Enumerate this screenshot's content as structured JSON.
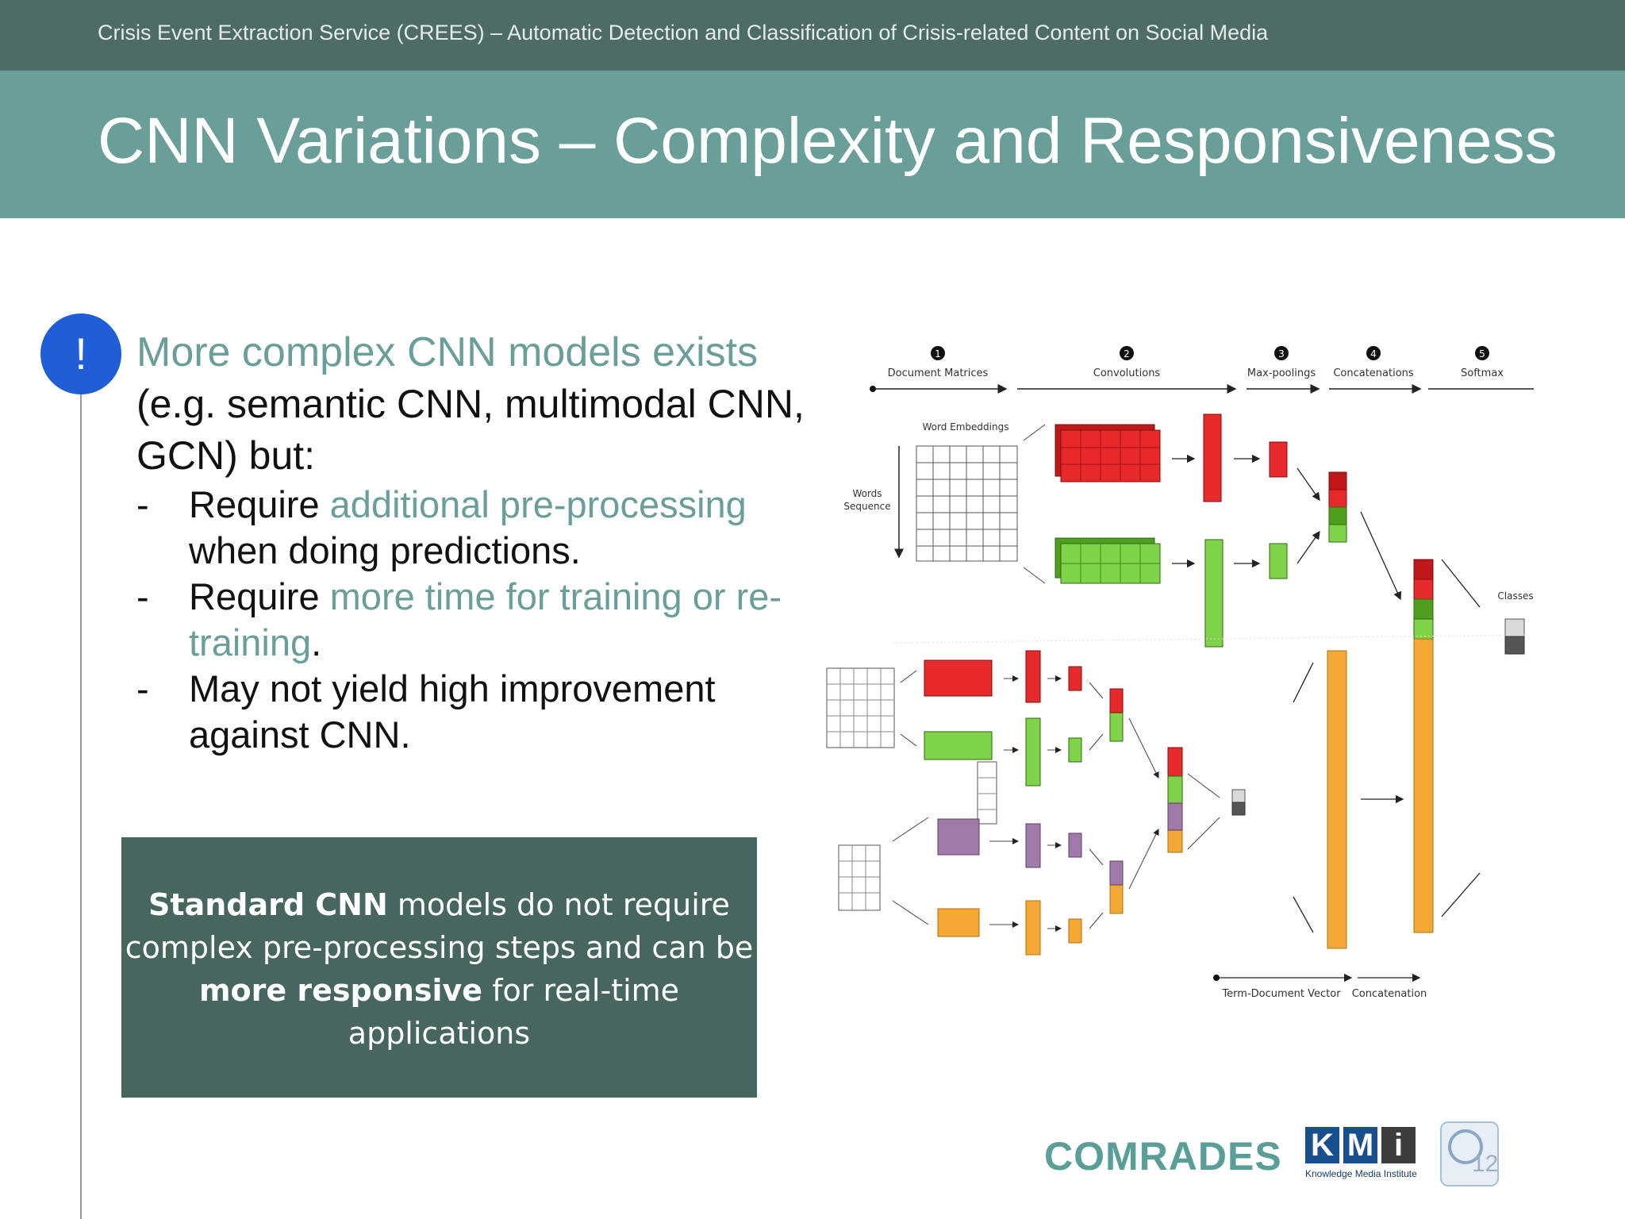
{
  "header": {
    "topic": "Crisis Event Extraction Service (CREES) – Automatic Detection and Classification of Crisis-related Content on Social Media",
    "title": "CNN Variations – Complexity and Responsiveness"
  },
  "alert": {
    "symbol": "!"
  },
  "content": {
    "lead": "More complex CNN models exists",
    "lead_rest": "(e.g. semantic CNN, multimodal CNN, GCN) but:",
    "bullets": [
      {
        "dash": "-",
        "pre": "Require ",
        "highlight": "additional pre-processing",
        "post": " when doing predictions."
      },
      {
        "dash": "-",
        "pre": "Require ",
        "highlight": "more time for training or re-training",
        "post": "."
      },
      {
        "dash": "-",
        "pre": "May not yield high improvement against CNN.",
        "highlight": "",
        "post": ""
      }
    ]
  },
  "note": {
    "b1": "Standard CNN",
    "t1": " models do not require complex pre-processing steps and can be ",
    "b2": "more responsive",
    "t2": " for real-time applications"
  },
  "diagram": {
    "steps": [
      {
        "num": "1",
        "label": "Document Matrices"
      },
      {
        "num": "2",
        "label": "Convolutions"
      },
      {
        "num": "3",
        "label": "Max-poolings"
      },
      {
        "num": "4",
        "label": "Concatenations"
      },
      {
        "num": "5",
        "label": "Softmax"
      }
    ],
    "labels": {
      "word_embeddings": "Word Embeddings",
      "words_sequence_1": "Words",
      "words_sequence_2": "Sequence",
      "classes": "Classes",
      "term_document_vector": "Term-Document Vector",
      "concatenation": "Concatenation"
    }
  },
  "logos": {
    "comrades": "COMRADES",
    "kmi": [
      "K",
      "M",
      "i"
    ],
    "kmi_sub": "Knowledge Media Institute"
  },
  "page_number": "12",
  "colors": {
    "red": "#e8292b",
    "green": "#7ed348",
    "purple": "#a07aa8",
    "orange": "#f3a833",
    "teal": "#6a9e99",
    "dark_teal": "#46665f"
  }
}
